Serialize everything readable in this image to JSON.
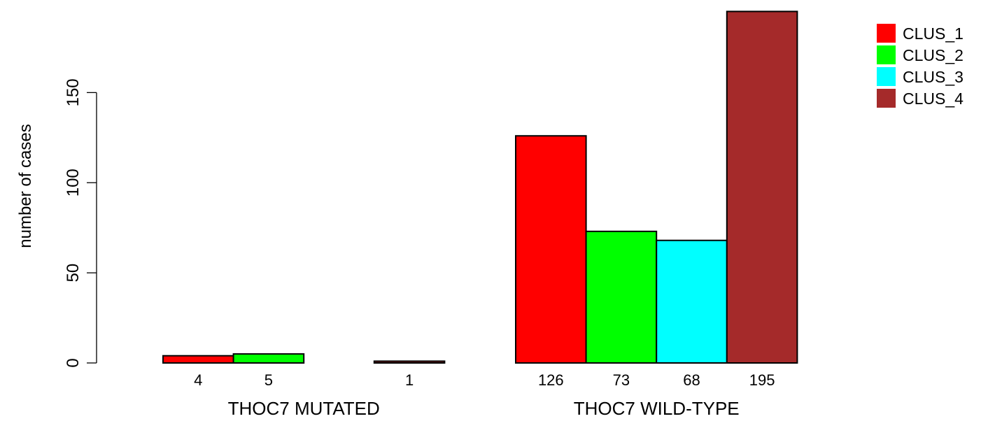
{
  "chart_data": {
    "type": "bar",
    "ylabel": "number of cases",
    "ylim": [
      0,
      195
    ],
    "y_ticks": [
      0,
      50,
      100,
      150
    ],
    "groups": [
      "THOC7 MUTATED",
      "THOC7 WILD-TYPE"
    ],
    "series": [
      {
        "name": "CLUS_1",
        "color": "#ff0000",
        "values": [
          4,
          126
        ]
      },
      {
        "name": "CLUS_2",
        "color": "#00ff00",
        "values": [
          5,
          73
        ]
      },
      {
        "name": "CLUS_3",
        "color": "#00ffff",
        "values": [
          0,
          68
        ]
      },
      {
        "name": "CLUS_4",
        "color": "#a52a2a",
        "values": [
          1,
          195
        ]
      }
    ],
    "bar_labels": [
      [
        "4",
        "5",
        "",
        "1"
      ],
      [
        "126",
        "73",
        "68",
        "195"
      ]
    ],
    "legend": {
      "position": "top-right",
      "entries": [
        "CLUS_1",
        "CLUS_2",
        "CLUS_3",
        "CLUS_4"
      ]
    },
    "grid": false
  }
}
